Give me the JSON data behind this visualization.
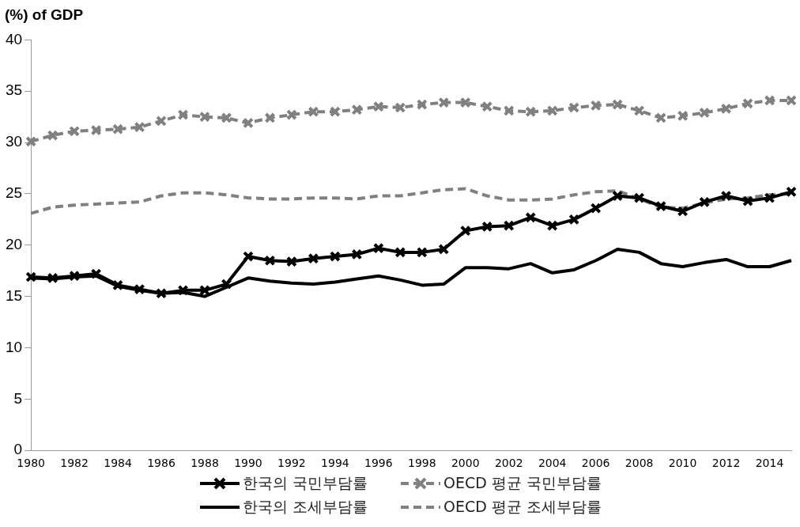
{
  "chart_data": {
    "type": "line",
    "ylabel": "(%) of GDP",
    "categories": [
      "1980",
      null,
      "1982",
      null,
      "1984",
      null,
      "1986",
      null,
      "1988",
      null,
      "1990",
      null,
      "1992",
      null,
      "1994",
      null,
      "1996",
      null,
      "1998",
      null,
      "2000",
      null,
      "2002",
      null,
      "2004",
      null,
      "2006",
      null,
      "2008",
      null,
      "2010",
      null,
      "2012",
      null,
      "2014",
      null
    ],
    "ylim": [
      0,
      40
    ],
    "yticks": [
      0,
      5,
      10,
      15,
      20,
      25,
      30,
      35,
      40
    ],
    "grid": false,
    "legend": "bottom",
    "series": [
      {
        "name": "한국의 국민부담률",
        "color": "#000000",
        "marker": "cross",
        "line_style": "solid",
        "values": [
          16.9,
          16.8,
          17.0,
          17.2,
          16.1,
          15.7,
          15.3,
          15.6,
          15.6,
          16.2,
          18.9,
          18.5,
          18.4,
          18.7,
          18.9,
          19.1,
          19.7,
          19.3,
          19.3,
          19.6,
          21.4,
          21.8,
          21.9,
          22.7,
          21.9,
          22.5,
          23.6,
          24.8,
          24.6,
          23.8,
          23.3,
          24.2,
          24.8,
          24.3,
          24.6,
          25.2
        ]
      },
      {
        "name": "OECD 평균 국민부담률",
        "color": "#808080",
        "marker": "cross",
        "line_style": "dashed",
        "values": [
          30.1,
          30.7,
          31.1,
          31.2,
          31.3,
          31.5,
          32.1,
          32.7,
          32.5,
          32.4,
          31.9,
          32.4,
          32.7,
          33.0,
          33.0,
          33.2,
          33.5,
          33.4,
          33.7,
          33.9,
          33.9,
          33.5,
          33.1,
          33.0,
          33.1,
          33.4,
          33.6,
          33.7,
          33.1,
          32.4,
          32.6,
          32.9,
          33.3,
          33.8,
          34.1,
          34.1
        ]
      },
      {
        "name": "한국의 조세부담률",
        "color": "#000000",
        "marker": "none",
        "line_style": "solid",
        "values": [
          16.8,
          16.7,
          16.9,
          17.0,
          16.0,
          15.6,
          15.3,
          15.4,
          15.0,
          15.9,
          16.8,
          16.5,
          16.3,
          16.2,
          16.4,
          16.7,
          17.0,
          16.6,
          16.1,
          16.2,
          17.8,
          17.8,
          17.7,
          18.2,
          17.3,
          17.6,
          18.5,
          19.6,
          19.3,
          18.2,
          17.9,
          18.3,
          18.6,
          17.9,
          17.9,
          18.5
        ]
      },
      {
        "name": "OECD 평균 조세부담률",
        "color": "#808080",
        "marker": "none",
        "line_style": "dashed",
        "values": [
          23.1,
          23.7,
          23.9,
          24.0,
          24.1,
          24.2,
          24.8,
          25.1,
          25.1,
          24.9,
          24.6,
          24.5,
          24.5,
          24.6,
          24.6,
          24.5,
          24.8,
          24.8,
          25.1,
          25.4,
          25.5,
          24.8,
          24.4,
          24.4,
          24.5,
          24.9,
          25.2,
          25.3,
          24.5,
          23.7,
          23.6,
          24.1,
          24.5,
          24.6,
          24.9,
          25.0
        ]
      }
    ]
  }
}
